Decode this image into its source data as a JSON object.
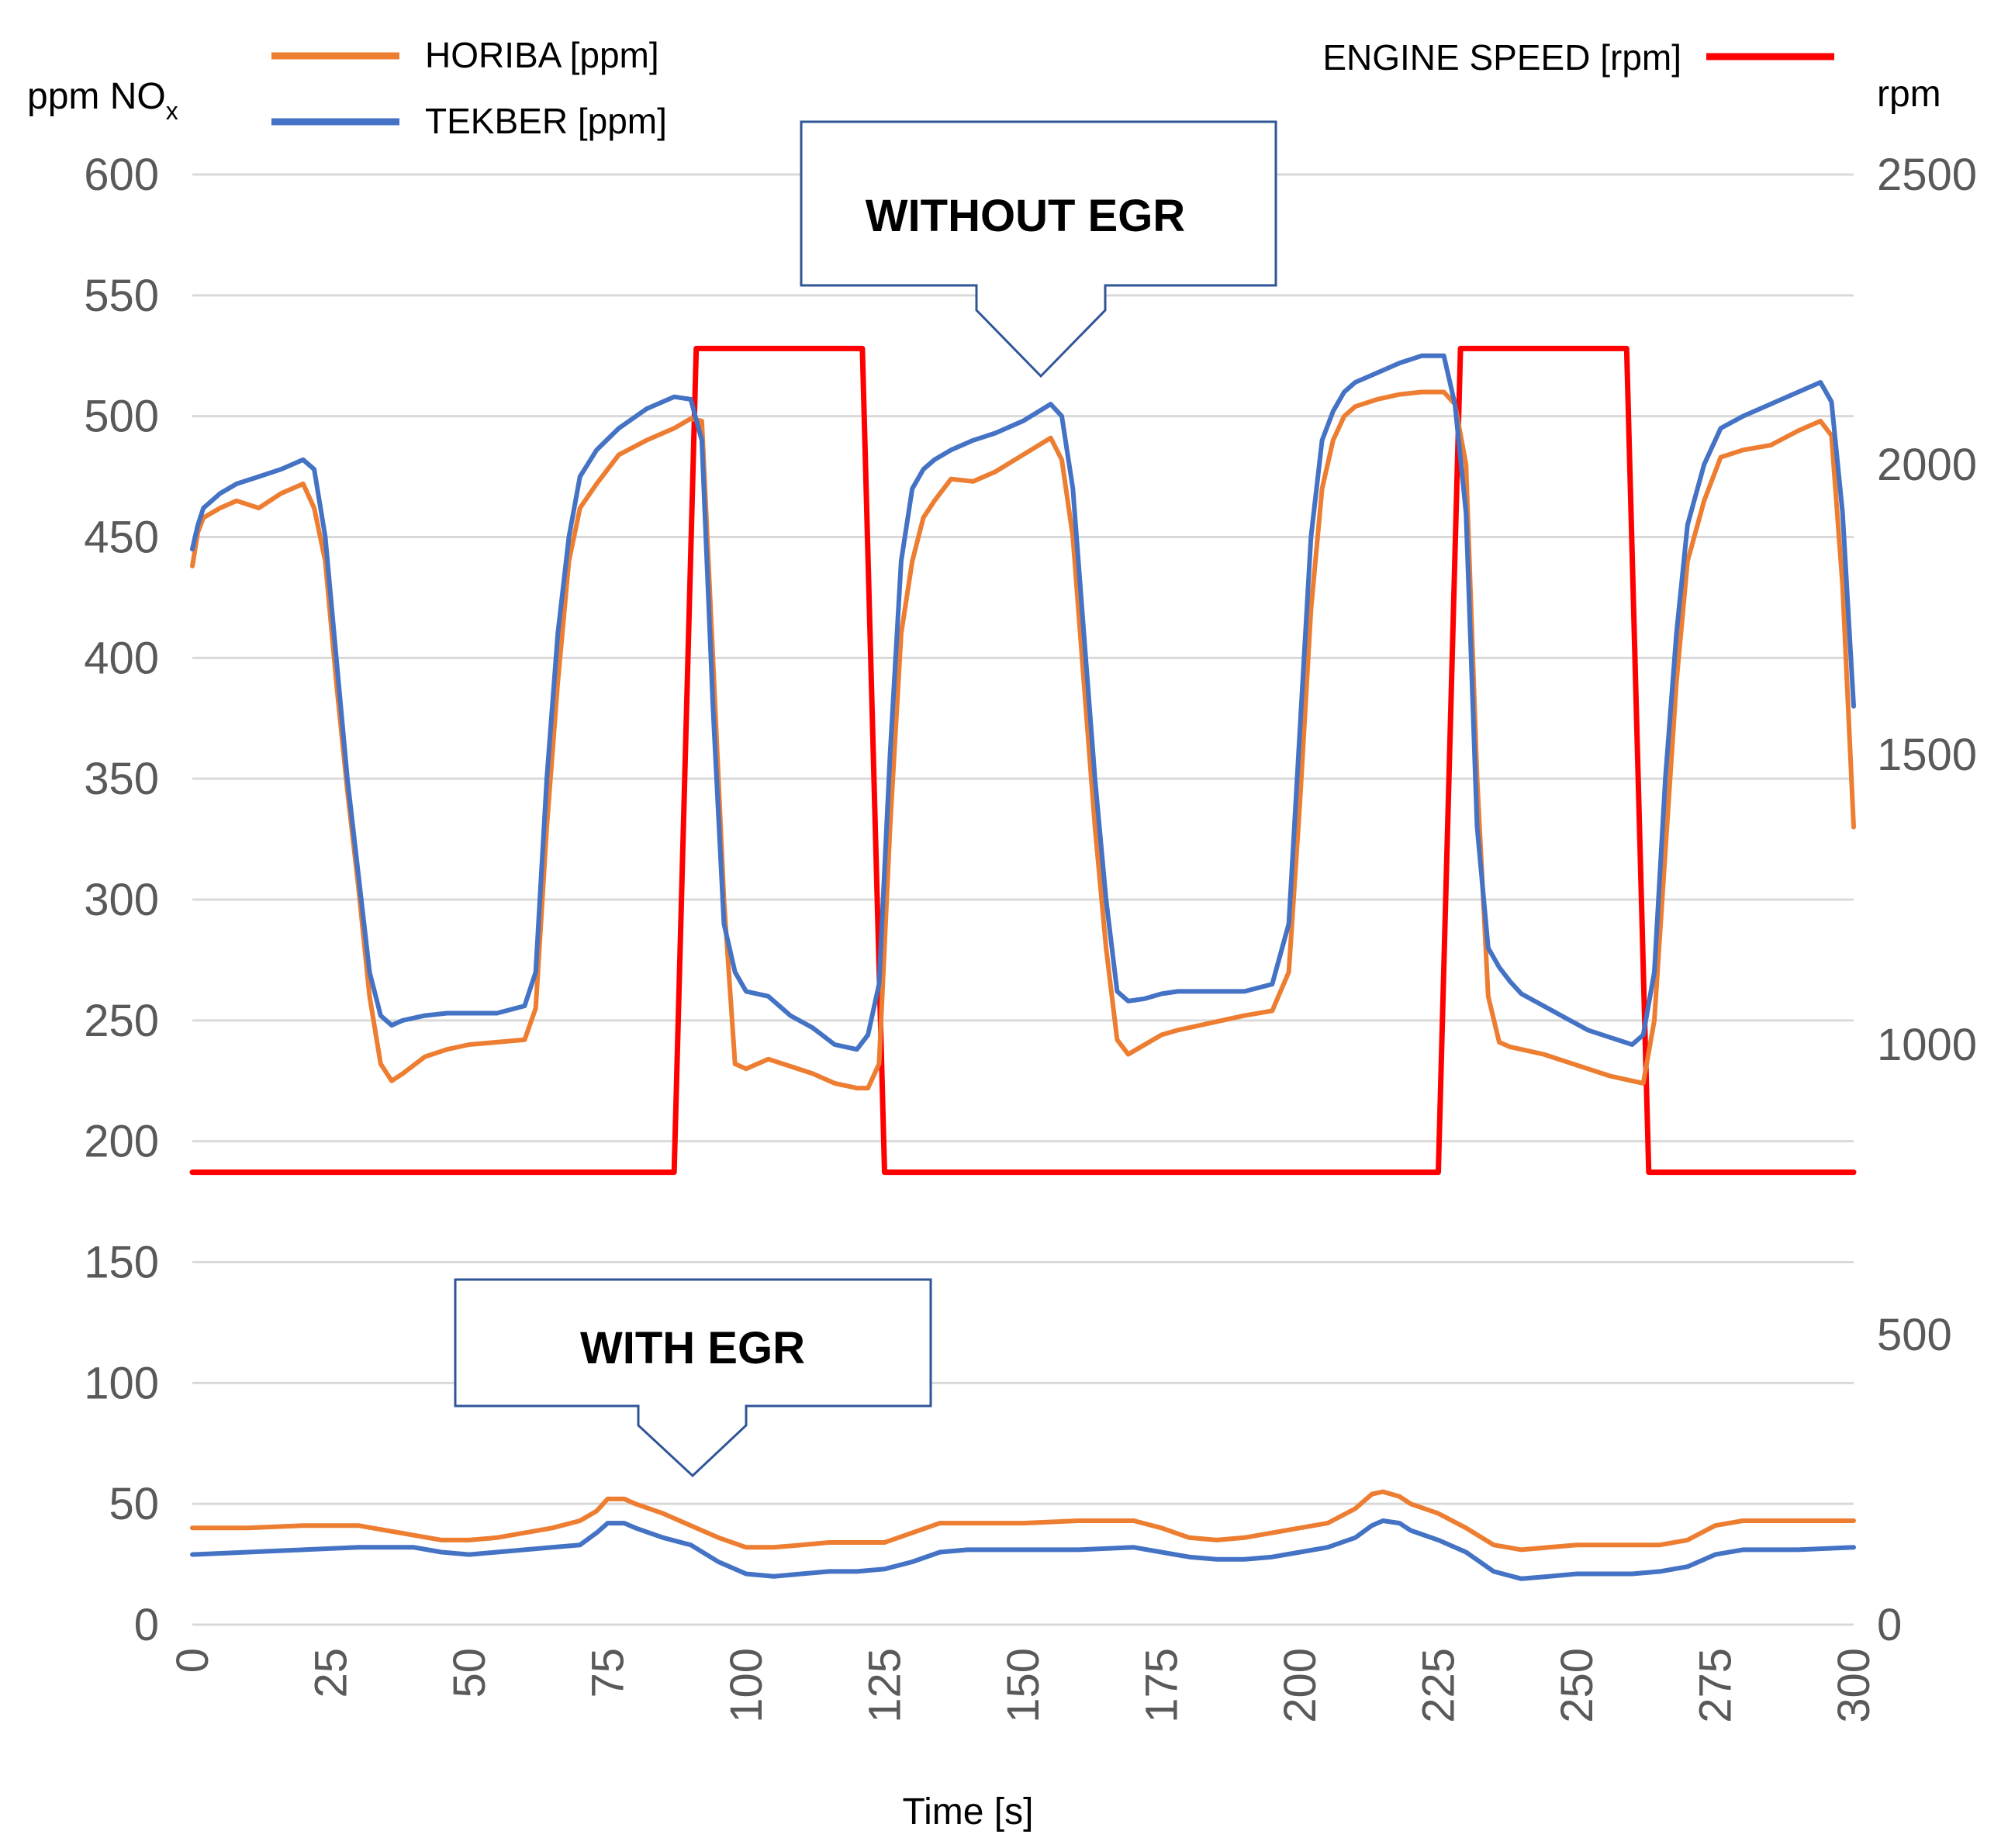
{
  "chart_data": {
    "type": "line",
    "xlabel": "Time [s]",
    "ylabel_left": "ppm NO",
    "ylabel_left_subscript": "x",
    "ylabel_right": "rpm",
    "xlim": [
      0,
      300
    ],
    "ylim_left": [
      0,
      600
    ],
    "ylim_right": [
      0,
      2500
    ],
    "x_ticks": [
      "0",
      "25",
      "50",
      "75",
      "100",
      "125",
      "150",
      "175",
      "200",
      "225",
      "250",
      "275",
      "300"
    ],
    "y_left_ticks": [
      "0",
      "50",
      "100",
      "150",
      "200",
      "250",
      "300",
      "350",
      "400",
      "450",
      "500",
      "550",
      "600"
    ],
    "y_right_ticks": [
      "0",
      "500",
      "1000",
      "1500",
      "2000",
      "2500"
    ],
    "grid": true,
    "annotations": [
      {
        "text": "WITHOUT EGR",
        "points_to": [
          155,
          497
        ]
      },
      {
        "text": "WITH EGR",
        "points_to": [
          92,
          60
        ]
      }
    ],
    "series": [
      {
        "name": "HORIBA [ppm]",
        "axis": "left",
        "color": "#ED7D31",
        "group": "without-egr",
        "x": [
          0,
          1,
          2,
          5,
          8,
          12,
          16,
          20,
          22,
          24,
          26,
          28,
          30,
          32,
          34,
          36,
          38,
          42,
          46,
          50,
          55,
          60,
          62,
          64,
          66,
          68,
          70,
          73,
          77,
          82,
          87,
          90,
          92,
          94,
          96,
          98,
          100,
          104,
          108,
          112,
          116,
          120,
          122,
          124,
          126,
          128,
          130,
          132,
          134,
          137,
          141,
          145,
          150,
          155,
          157,
          159,
          161,
          163,
          165,
          167,
          169,
          172,
          175,
          178,
          182,
          186,
          190,
          195,
          198,
          200,
          202,
          204,
          206,
          208,
          210,
          214,
          218,
          222,
          226,
          228,
          230,
          232,
          234,
          236,
          238,
          240,
          244,
          248,
          252,
          256,
          260,
          262,
          264,
          266,
          268,
          270,
          273,
          276,
          280,
          285,
          290,
          294,
          296,
          298,
          300
        ],
        "y": [
          438,
          452,
          458,
          462,
          465,
          462,
          468,
          472,
          462,
          440,
          390,
          345,
          305,
          260,
          232,
          225,
          228,
          235,
          238,
          240,
          241,
          242,
          255,
          330,
          390,
          440,
          462,
          472,
          484,
          490,
          495,
          499,
          498,
          400,
          300,
          232,
          230,
          234,
          231,
          228,
          224,
          222,
          222,
          232,
          330,
          410,
          440,
          458,
          465,
          474,
          473,
          477,
          484,
          491,
          482,
          450,
          390,
          330,
          280,
          242,
          236,
          240,
          244,
          246,
          248,
          250,
          252,
          254,
          270,
          340,
          420,
          470,
          490,
          500,
          504,
          507,
          509,
          510,
          510,
          505,
          480,
          350,
          260,
          241,
          239,
          238,
          236,
          233,
          230,
          227,
          225,
          224,
          250,
          320,
          390,
          440,
          465,
          483,
          486,
          488,
          494,
          498,
          492,
          430,
          330
        ]
      },
      {
        "name": "TEKBER [ppm]",
        "axis": "left",
        "color": "#4472C4",
        "group": "without-egr",
        "x": [
          0,
          1,
          2,
          5,
          8,
          12,
          16,
          20,
          22,
          24,
          26,
          28,
          30,
          32,
          34,
          36,
          38,
          42,
          46,
          50,
          55,
          60,
          62,
          64,
          66,
          68,
          70,
          73,
          77,
          82,
          87,
          90,
          92,
          94,
          96,
          98,
          100,
          104,
          108,
          112,
          116,
          120,
          122,
          124,
          126,
          128,
          130,
          132,
          134,
          137,
          141,
          145,
          150,
          155,
          157,
          159,
          161,
          163,
          165,
          167,
          169,
          172,
          175,
          178,
          182,
          186,
          190,
          195,
          198,
          200,
          202,
          204,
          206,
          208,
          210,
          214,
          218,
          222,
          226,
          228,
          230,
          232,
          234,
          236,
          238,
          240,
          244,
          248,
          252,
          256,
          260,
          262,
          264,
          266,
          268,
          270,
          273,
          276,
          280,
          285,
          290,
          294,
          296,
          298,
          300
        ],
        "y": [
          445,
          455,
          462,
          468,
          472,
          475,
          478,
          482,
          478,
          450,
          400,
          350,
          310,
          270,
          252,
          248,
          250,
          252,
          253,
          253,
          253,
          256,
          270,
          350,
          410,
          450,
          475,
          486,
          495,
          503,
          508,
          507,
          490,
          380,
          290,
          270,
          262,
          260,
          252,
          247,
          240,
          238,
          244,
          265,
          360,
          440,
          470,
          478,
          482,
          486,
          490,
          493,
          498,
          505,
          500,
          470,
          410,
          350,
          300,
          262,
          258,
          259,
          261,
          262,
          262,
          262,
          262,
          265,
          290,
          370,
          450,
          490,
          502,
          510,
          514,
          518,
          522,
          525,
          525,
          505,
          460,
          330,
          280,
          272,
          266,
          261,
          256,
          251,
          246,
          243,
          240,
          244,
          270,
          350,
          410,
          455,
          480,
          495,
          500,
          505,
          510,
          514,
          506,
          460,
          380
        ]
      },
      {
        "name": "ENGINE SPEED [rpm]",
        "axis": "right",
        "color": "#FF0000",
        "x": [
          0,
          87,
          91,
          121,
          125,
          225,
          229,
          259,
          263,
          300
        ],
        "y": [
          780,
          780,
          2200,
          2200,
          780,
          780,
          2200,
          2200,
          780,
          780
        ]
      },
      {
        "name": "HORIBA [ppm]",
        "axis": "left",
        "color": "#ED7D31",
        "group": "with-egr",
        "x": [
          0,
          10,
          20,
          30,
          40,
          45,
          50,
          55,
          60,
          65,
          70,
          73,
          75,
          78,
          80,
          85,
          90,
          95,
          100,
          105,
          110,
          115,
          120,
          125,
          130,
          135,
          140,
          150,
          160,
          170,
          175,
          180,
          185,
          190,
          195,
          200,
          205,
          210,
          213,
          215,
          218,
          220,
          225,
          230,
          235,
          240,
          245,
          250,
          255,
          260,
          265,
          270,
          275,
          280,
          290,
          300
        ],
        "y": [
          40,
          40,
          41,
          41,
          37,
          35,
          35,
          36,
          38,
          40,
          43,
          47,
          52,
          52,
          50,
          46,
          41,
          36,
          32,
          32,
          33,
          34,
          34,
          34,
          38,
          42,
          42,
          42,
          43,
          43,
          40,
          36,
          35,
          36,
          38,
          40,
          42,
          48,
          54,
          55,
          53,
          50,
          46,
          40,
          33,
          31,
          32,
          33,
          33,
          33,
          33,
          35,
          41,
          43,
          43,
          43
        ]
      },
      {
        "name": "TEKBER [ppm]",
        "axis": "left",
        "color": "#4472C4",
        "group": "with-egr",
        "x": [
          0,
          10,
          20,
          30,
          40,
          45,
          50,
          55,
          60,
          65,
          70,
          73,
          75,
          78,
          80,
          85,
          90,
          95,
          100,
          105,
          110,
          115,
          120,
          125,
          130,
          135,
          140,
          150,
          160,
          170,
          175,
          180,
          185,
          190,
          195,
          200,
          205,
          210,
          213,
          215,
          218,
          220,
          225,
          230,
          235,
          240,
          245,
          250,
          255,
          260,
          265,
          270,
          275,
          280,
          290,
          300
        ],
        "y": [
          29,
          30,
          31,
          32,
          32,
          30,
          29,
          30,
          31,
          32,
          33,
          38,
          42,
          42,
          40,
          36,
          33,
          26,
          21,
          20,
          21,
          22,
          22,
          23,
          26,
          30,
          31,
          31,
          31,
          32,
          30,
          28,
          27,
          27,
          28,
          30,
          32,
          36,
          41,
          43,
          42,
          39,
          35,
          30,
          22,
          19,
          20,
          21,
          21,
          21,
          22,
          24,
          29,
          31,
          31,
          32
        ]
      }
    ]
  },
  "legend": [
    {
      "label": "HORIBA [ppm]",
      "color": "#ED7D31"
    },
    {
      "label": "TEKBER [ppm]",
      "color": "#4472C4"
    },
    {
      "label": "ENGINE SPEED [rpm]",
      "color": "#FF0000"
    }
  ],
  "colors": {
    "grid": "#D9D9D9",
    "callout_border": "#2F5597",
    "tick_text": "#595959"
  }
}
